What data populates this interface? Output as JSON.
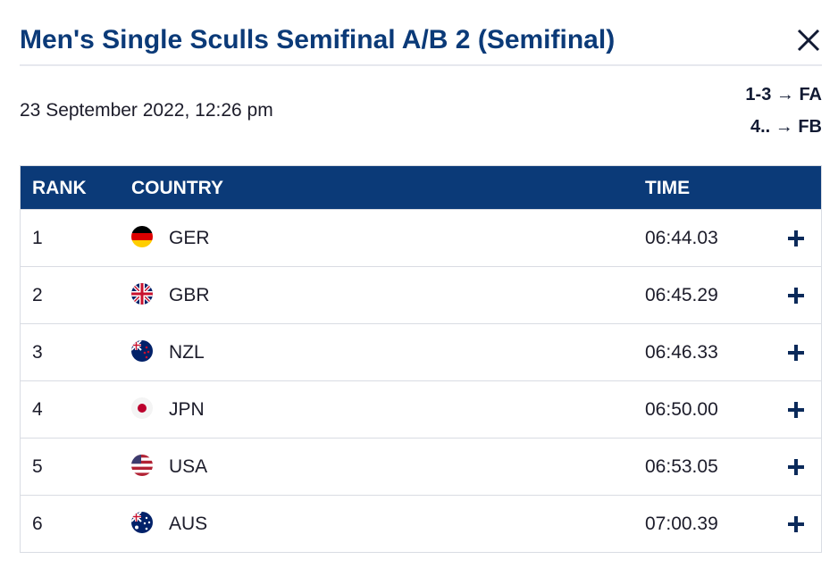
{
  "header": {
    "title": "Men's Single Sculls Semifinal A/B 2 (Semifinal)",
    "close_icon": "close-icon"
  },
  "race": {
    "date": "23 September 2022, 12:26 pm",
    "progression": [
      {
        "range": "1-3",
        "arrow": "→",
        "final": "FA"
      },
      {
        "range": "4..",
        "arrow": "→",
        "final": "FB"
      }
    ]
  },
  "table": {
    "columns": {
      "rank": "RANK",
      "country": "COUNTRY",
      "time": "TIME"
    },
    "rows": [
      {
        "rank": "1",
        "country": "GER",
        "time": "06:44.03",
        "flag_icon": "germany-flag-icon"
      },
      {
        "rank": "2",
        "country": "GBR",
        "time": "06:45.29",
        "flag_icon": "great-britain-flag-icon"
      },
      {
        "rank": "3",
        "country": "NZL",
        "time": "06:46.33",
        "flag_icon": "new-zealand-flag-icon"
      },
      {
        "rank": "4",
        "country": "JPN",
        "time": "06:50.00",
        "flag_icon": "japan-flag-icon"
      },
      {
        "rank": "5",
        "country": "USA",
        "time": "06:53.05",
        "flag_icon": "usa-flag-icon"
      },
      {
        "rank": "6",
        "country": "AUS",
        "time": "07:00.39",
        "flag_icon": "australia-flag-icon"
      }
    ]
  },
  "colors": {
    "primary": "#0b3a78",
    "border": "#d9dce3"
  }
}
